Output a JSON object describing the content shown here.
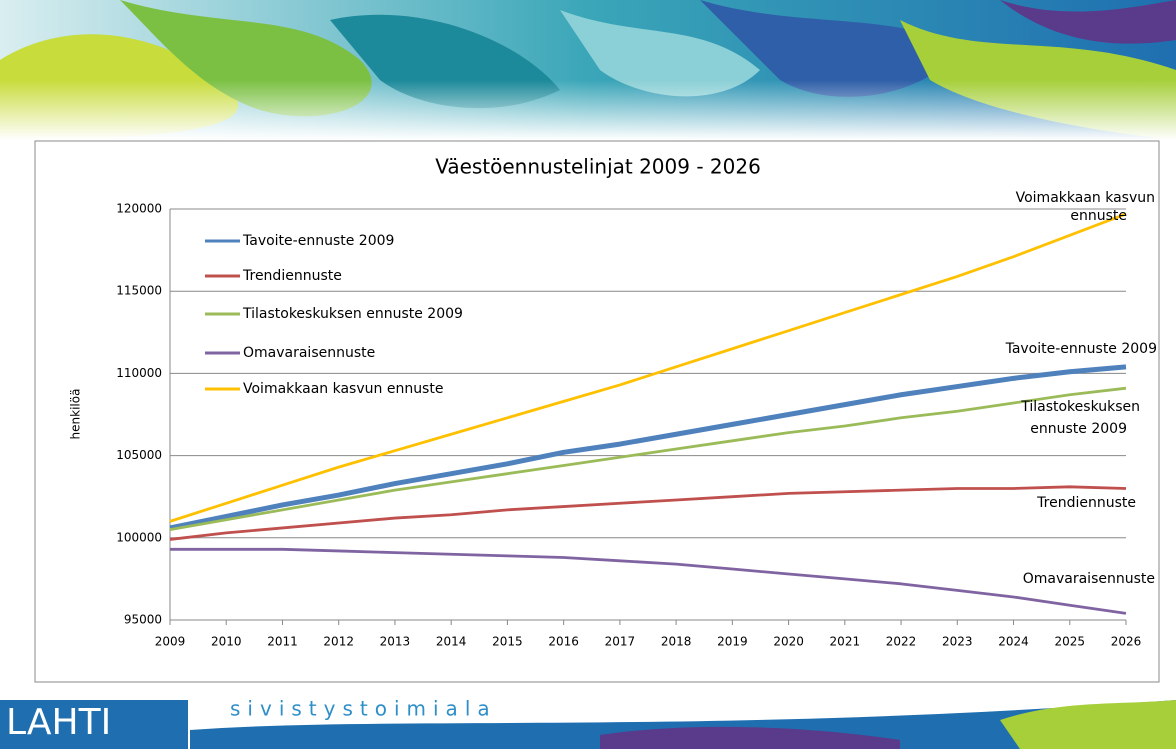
{
  "chart_data": {
    "type": "line",
    "title": "Väestöennustelinjat  2009 - 2026",
    "y_label": "henkilöä",
    "x": [
      2009,
      2010,
      2011,
      2012,
      2013,
      2014,
      2015,
      2016,
      2017,
      2018,
      2019,
      2020,
      2021,
      2022,
      2023,
      2024,
      2025,
      2026
    ],
    "xlim": [
      2009,
      2026
    ],
    "xticks": [
      2009,
      2010,
      2011,
      2012,
      2013,
      2014,
      2015,
      2016,
      2017,
      2018,
      2019,
      2020,
      2021,
      2022,
      2023,
      2024,
      2025,
      2026
    ],
    "ylim": [
      95000,
      120000
    ],
    "yticks": [
      95000,
      100000,
      105000,
      110000,
      115000,
      120000
    ],
    "grid": true,
    "legend": "upper-left",
    "series": [
      {
        "name": "Tavoite-ennuste 2009",
        "color": "#4f81bd",
        "values": [
          100600,
          101300,
          102000,
          102600,
          103300,
          103900,
          104500,
          105200,
          105700,
          106300,
          106900,
          107500,
          108100,
          108700,
          109200,
          109700,
          110100,
          110400
        ]
      },
      {
        "name": "Trendiennuste",
        "color": "#c0504d",
        "values": [
          99900,
          100300,
          100600,
          100900,
          101200,
          101400,
          101700,
          101900,
          102100,
          102300,
          102500,
          102700,
          102800,
          102900,
          103000,
          103000,
          103100,
          103000
        ]
      },
      {
        "name": "Tilastokeskuksen ennuste 2009",
        "color": "#9bbb59",
        "values": [
          100500,
          101100,
          101700,
          102300,
          102900,
          103400,
          103900,
          104400,
          104900,
          105400,
          105900,
          106400,
          106800,
          107300,
          107700,
          108200,
          108700,
          109100
        ]
      },
      {
        "name": "Omavaraisennuste",
        "color": "#8064a2",
        "values": [
          99300,
          99300,
          99300,
          99200,
          99100,
          99000,
          98900,
          98800,
          98600,
          98400,
          98100,
          97800,
          97500,
          97200,
          96800,
          96400,
          95900,
          95400
        ]
      },
      {
        "name": "Voimakkaan kasvun ennuste",
        "color": "#ffc000",
        "values": [
          101000,
          102100,
          103200,
          104300,
          105300,
          106300,
          107300,
          108300,
          109300,
          110400,
          111500,
          112600,
          113700,
          114800,
          115900,
          117100,
          118400,
          119700
        ]
      }
    ],
    "annotations": [
      [
        "Voimakkaan kasvun",
        "ennuste"
      ],
      [
        "Tavoite-ennuste 2009"
      ],
      [
        "Tilastokeskuksen",
        "ennuste 2009"
      ],
      [
        "Trendiennuste"
      ],
      [
        "Omavaraisennuste"
      ]
    ]
  },
  "footer": {
    "logo": "LAHTI",
    "department": "sivistystoimiala"
  }
}
